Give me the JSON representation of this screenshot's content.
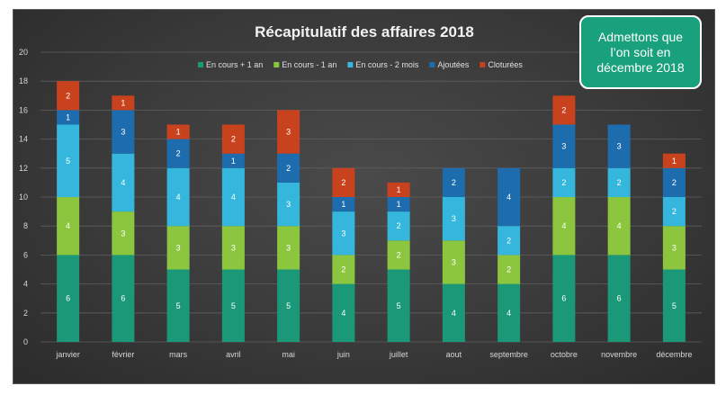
{
  "chart_data": {
    "type": "bar",
    "stacked": true,
    "title": "Récapitulatif des affaires 2018",
    "xlabel": "",
    "ylabel": "",
    "ylim": [
      0,
      20
    ],
    "yticks": [
      0,
      2,
      4,
      6,
      8,
      10,
      12,
      14,
      16,
      18,
      20
    ],
    "grid": true,
    "legend_position": "top",
    "categories": [
      "janvier",
      "février",
      "mars",
      "avril",
      "mai",
      "juin",
      "juillet",
      "aout",
      "septembre",
      "octobre",
      "novembre",
      "décembre"
    ],
    "series": [
      {
        "name": "En cours + 1 an",
        "color": "#1a9878",
        "values": [
          6,
          6,
          5,
          5,
          5,
          4,
          5,
          4,
          4,
          6,
          6,
          5
        ]
      },
      {
        "name": "En cours - 1 an",
        "color": "#8cc63f",
        "values": [
          4,
          3,
          3,
          3,
          3,
          2,
          2,
          3,
          2,
          4,
          4,
          3
        ]
      },
      {
        "name": "En cours - 2 mois",
        "color": "#35b6dd",
        "values": [
          5,
          4,
          4,
          4,
          3,
          3,
          2,
          3,
          2,
          2,
          2,
          2
        ]
      },
      {
        "name": "Ajoutées",
        "color": "#1c6cae",
        "values": [
          1,
          3,
          2,
          1,
          2,
          1,
          1,
          2,
          4,
          3,
          3,
          2
        ]
      },
      {
        "name": "Cloturées",
        "color": "#c9421e",
        "values": [
          2,
          1,
          1,
          2,
          3,
          2,
          1,
          null,
          null,
          2,
          null,
          1
        ]
      }
    ]
  },
  "callout": {
    "text": "Admettons que l’on soit en décembre 2018"
  }
}
